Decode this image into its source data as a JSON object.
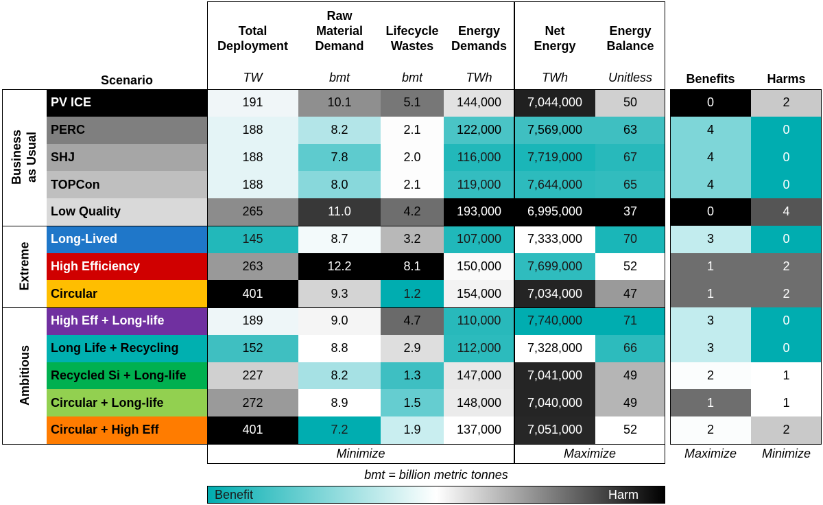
{
  "chart_data": {
    "type": "table",
    "header_label": "Scenario",
    "columns": [
      {
        "title": "Total\nDeployment",
        "unit": "TW"
      },
      {
        "title": "Raw\nMaterial\nDemand",
        "unit": "bmt"
      },
      {
        "title": "Lifecycle\nWastes",
        "unit": "bmt"
      },
      {
        "title": "Energy\nDemands",
        "unit": "TWh"
      },
      {
        "title": "Net\nEnergy",
        "unit": "TWh"
      },
      {
        "title": "Energy\nBalance",
        "unit": "Unitless"
      },
      {
        "title": "Benefits",
        "unit": ""
      },
      {
        "title": "Harms",
        "unit": ""
      }
    ],
    "groups": [
      {
        "name": "Business\nas Usual",
        "rows": 5
      },
      {
        "name": "Extreme",
        "rows": 3
      },
      {
        "name": "Ambitious",
        "rows": 5
      }
    ],
    "rows": [
      {
        "label": "PV ICE",
        "label_bg": "#000000",
        "label_fg": "#ffffff",
        "values": [
          "191",
          "10.1",
          "5.1",
          "144,000",
          "7,044,000",
          "50",
          "0",
          "2"
        ],
        "bgs": [
          "#f0f6f8",
          "#8f8f8f",
          "#777777",
          "#e2e2e2",
          "#202020",
          "#d0d0d0",
          "#000000",
          "#c9c9c9"
        ]
      },
      {
        "label": "PERC",
        "label_bg": "#7f7f7f",
        "label_fg": "#000000",
        "values": [
          "188",
          "8.2",
          "2.1",
          "122,000",
          "7,569,000",
          "63",
          "4",
          "0"
        ],
        "bgs": [
          "#e4f4f6",
          "#b3e5e8",
          "#fdfdfd",
          "#4ac4c6",
          "#3fbfc1",
          "#3fbfc1",
          "#7ed6d8",
          "#00adb0"
        ]
      },
      {
        "label": "SHJ",
        "label_bg": "#a6a6a6",
        "label_fg": "#000000",
        "values": [
          "188",
          "7.8",
          "2.0",
          "116,000",
          "7,719,000",
          "67",
          "4",
          "0"
        ],
        "bgs": [
          "#e4f4f6",
          "#5ecbce",
          "#fdfdfd",
          "#22b8ba",
          "#1ab6b8",
          "#28b9bb",
          "#7ed6d8",
          "#00adb0"
        ]
      },
      {
        "label": "TOPCon",
        "label_bg": "#bfbfbf",
        "label_fg": "#000000",
        "values": [
          "188",
          "8.0",
          "2.1",
          "119,000",
          "7,644,000",
          "65",
          "4",
          "0"
        ],
        "bgs": [
          "#e4f4f6",
          "#88d8db",
          "#fdfdfd",
          "#34bdc0",
          "#2dbbbd",
          "#32bcbe",
          "#7ed6d8",
          "#00adb0"
        ]
      },
      {
        "label": "Low Quality",
        "label_bg": "#d9d9d9",
        "label_fg": "#000000",
        "values": [
          "265",
          "11.0",
          "4.2",
          "193,000",
          "6,995,000",
          "37",
          "0",
          "4"
        ],
        "bgs": [
          "#8c8c8c",
          "#383838",
          "#6e6e6e",
          "#000000",
          "#000000",
          "#000000",
          "#000000",
          "#555555"
        ]
      },
      {
        "label": "Long-Lived",
        "label_bg": "#1f77c9",
        "label_fg": "#ffffff",
        "values": [
          "145",
          "8.7",
          "3.2",
          "107,000",
          "7,333,000",
          "70",
          "3",
          "0"
        ],
        "bgs": [
          "#22b8ba",
          "#f3fafb",
          "#b8b8b8",
          "#20b8ba",
          "#ffffff",
          "#1ab6b8",
          "#c2ecee",
          "#00adb0"
        ]
      },
      {
        "label": "High Efficiency",
        "label_bg": "#d00000",
        "label_fg": "#ffffff",
        "values": [
          "263",
          "12.2",
          "8.1",
          "150,000",
          "7,699,000",
          "52",
          "1",
          "2"
        ],
        "bgs": [
          "#999999",
          "#000000",
          "#000000",
          "#fafafa",
          "#2fbcbe",
          "#ffffff",
          "#6e6e6e",
          "#6e6e6e"
        ]
      },
      {
        "label": "Circular",
        "label_bg": "#ffbe00",
        "label_fg": "#000000",
        "values": [
          "401",
          "9.3",
          "1.2",
          "154,000",
          "7,034,000",
          "47",
          "1",
          "2"
        ],
        "bgs": [
          "#000000",
          "#d4d4d4",
          "#00adb0",
          "#f3f3f3",
          "#242424",
          "#9a9a9a",
          "#6e6e6e",
          "#6e6e6e"
        ]
      },
      {
        "label": "High Eff + Long-life",
        "label_bg": "#7030a0",
        "label_fg": "#ffffff",
        "values": [
          "189",
          "9.0",
          "4.7",
          "110,000",
          "7,740,000",
          "71",
          "3",
          "0"
        ],
        "bgs": [
          "#eef6f8",
          "#f5f5f5",
          "#6a6a6a",
          "#28b9bb",
          "#00adb0",
          "#00adb0",
          "#c2ecee",
          "#00adb0"
        ]
      },
      {
        "label": "Long Life + Recycling",
        "label_bg": "#00b0b0",
        "label_fg": "#000000",
        "values": [
          "152",
          "8.8",
          "2.9",
          "112,000",
          "7,328,000",
          "66",
          "3",
          "0"
        ],
        "bgs": [
          "#3fbfc1",
          "#ffffff",
          "#dedede",
          "#2cbbbd",
          "#ffffff",
          "#2dbbbd",
          "#c2ecee",
          "#00adb0"
        ]
      },
      {
        "label": "Recycled Si + Long-life",
        "label_bg": "#00b050",
        "label_fg": "#000000",
        "values": [
          "227",
          "8.2",
          "1.3",
          "147,000",
          "7,041,000",
          "49",
          "2",
          "1"
        ],
        "bgs": [
          "#d0d0d0",
          "#a6e1e4",
          "#3ebfc2",
          "#e8e8e8",
          "#252525",
          "#b5b5b5",
          "#fbfdfd",
          "#ffffff"
        ]
      },
      {
        "label": "Circular + Long-life",
        "label_bg": "#92d050",
        "label_fg": "#000000",
        "values": [
          "272",
          "8.9",
          "1.5",
          "148,000",
          "7,040,000",
          "49",
          "1",
          "1"
        ],
        "bgs": [
          "#9a9a9a",
          "#ffffff",
          "#65cdd0",
          "#ebebeb",
          "#252525",
          "#b5b5b5",
          "#6e6e6e",
          "#ffffff"
        ]
      },
      {
        "label": "Circular + High Eff",
        "label_bg": "#ff7c00",
        "label_fg": "#000000",
        "values": [
          "401",
          "7.2",
          "1.9",
          "137,000",
          "7,051,000",
          "52",
          "2",
          "2"
        ],
        "bgs": [
          "#000000",
          "#00adb0",
          "#c9eef0",
          "#ffffff",
          "#272727",
          "#ffffff",
          "#fbfdfd",
          "#c9c9c9"
        ]
      }
    ],
    "footer": [
      {
        "label": "Minimize",
        "span": [
          0,
          3
        ]
      },
      {
        "label": "Maximize",
        "span": [
          4,
          5
        ]
      },
      {
        "label": "Maximize",
        "span": [
          6,
          6
        ]
      },
      {
        "label": "Minimize",
        "span": [
          7,
          7
        ]
      }
    ],
    "note": "bmt = billion metric tonnes",
    "legend": {
      "low_label": "Benefit",
      "high_label": "Harm",
      "colors": [
        "#00adb0",
        "#ffffff",
        "#000000"
      ]
    }
  }
}
